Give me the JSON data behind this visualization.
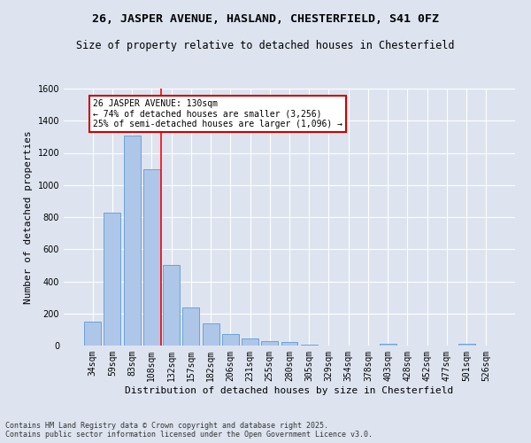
{
  "title": "26, JASPER AVENUE, HASLAND, CHESTERFIELD, S41 0FZ",
  "subtitle": "Size of property relative to detached houses in Chesterfield",
  "xlabel": "Distribution of detached houses by size in Chesterfield",
  "ylabel": "Number of detached properties",
  "categories": [
    "34sqm",
    "59sqm",
    "83sqm",
    "108sqm",
    "132sqm",
    "157sqm",
    "182sqm",
    "206sqm",
    "231sqm",
    "255sqm",
    "280sqm",
    "305sqm",
    "329sqm",
    "354sqm",
    "378sqm",
    "403sqm",
    "428sqm",
    "452sqm",
    "477sqm",
    "501sqm",
    "526sqm"
  ],
  "values": [
    150,
    830,
    1310,
    1100,
    500,
    235,
    140,
    70,
    42,
    27,
    20,
    8,
    0,
    0,
    0,
    12,
    0,
    0,
    0,
    10,
    0
  ],
  "bar_color": "#aec6e8",
  "bar_edge_color": "#5b9bd5",
  "annotation_text": "26 JASPER AVENUE: 130sqm\n← 74% of detached houses are smaller (3,256)\n25% of semi-detached houses are larger (1,096) →",
  "annotation_box_color": "#ffffff",
  "annotation_box_edge_color": "#cc0000",
  "ylim": [
    0,
    1600
  ],
  "yticks": [
    0,
    200,
    400,
    600,
    800,
    1000,
    1200,
    1400,
    1600
  ],
  "background_color": "#dde4f0",
  "plot_background": "#dde4f0",
  "footer": "Contains HM Land Registry data © Crown copyright and database right 2025.\nContains public sector information licensed under the Open Government Licence v3.0.",
  "title_fontsize": 9.5,
  "subtitle_fontsize": 8.5,
  "label_fontsize": 8,
  "tick_fontsize": 7,
  "annotation_fontsize": 7,
  "footer_fontsize": 6,
  "red_line_index": 3.5
}
